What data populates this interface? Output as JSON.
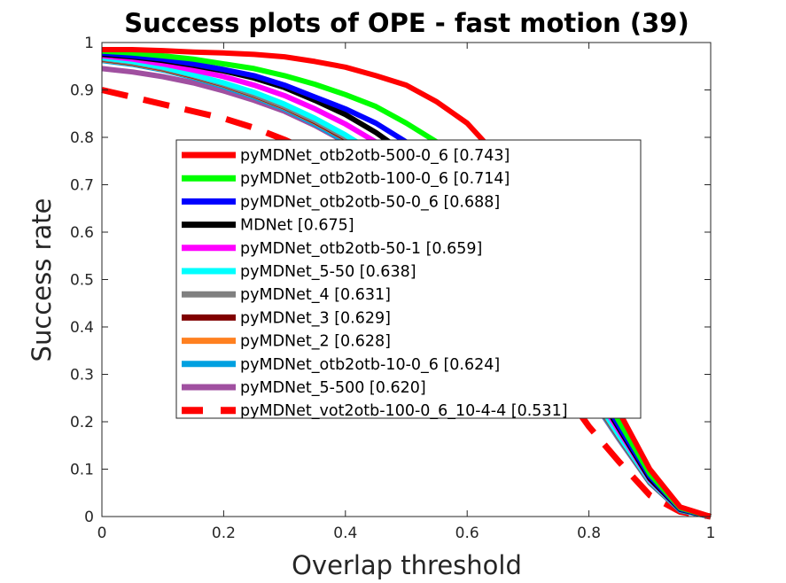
{
  "chart_data": {
    "type": "line",
    "title": "Success plots of OPE - fast motion (39)",
    "xlabel": "Overlap threshold",
    "ylabel": "Success rate",
    "xlim": [
      0,
      1
    ],
    "ylim": [
      0,
      1
    ],
    "xticks": [
      "0",
      "0.2",
      "0.4",
      "0.6",
      "0.8",
      "1"
    ],
    "yticks": [
      "0",
      "0.1",
      "0.2",
      "0.3",
      "0.4",
      "0.5",
      "0.6",
      "0.7",
      "0.8",
      "0.9",
      "1"
    ],
    "grid": false,
    "legend_position": "center-left",
    "x": [
      0,
      0.05,
      0.1,
      0.15,
      0.2,
      0.25,
      0.3,
      0.35,
      0.4,
      0.45,
      0.5,
      0.55,
      0.6,
      0.65,
      0.7,
      0.75,
      0.8,
      0.85,
      0.9,
      0.95,
      1.0
    ],
    "series": [
      {
        "name": "pyMDNet_otb2otb-500-0_6 [0.743]",
        "color": "#ff0000",
        "dash": false,
        "values": [
          0.985,
          0.985,
          0.983,
          0.98,
          0.978,
          0.975,
          0.97,
          0.96,
          0.948,
          0.93,
          0.91,
          0.875,
          0.83,
          0.76,
          0.66,
          0.5,
          0.34,
          0.22,
          0.1,
          0.02,
          0.0
        ]
      },
      {
        "name": "pyMDNet_otb2otb-100-0_6 [0.714]",
        "color": "#00ff00",
        "dash": false,
        "values": [
          0.982,
          0.978,
          0.972,
          0.965,
          0.955,
          0.945,
          0.93,
          0.912,
          0.89,
          0.865,
          0.83,
          0.79,
          0.73,
          0.65,
          0.56,
          0.44,
          0.31,
          0.2,
          0.09,
          0.018,
          0.0
        ]
      },
      {
        "name": "pyMDNet_otb2otb-50-0_6 [0.688]",
        "color": "#0000ff",
        "dash": false,
        "values": [
          0.978,
          0.972,
          0.965,
          0.955,
          0.943,
          0.93,
          0.91,
          0.885,
          0.86,
          0.83,
          0.79,
          0.74,
          0.68,
          0.61,
          0.52,
          0.41,
          0.3,
          0.19,
          0.085,
          0.016,
          0.0
        ]
      },
      {
        "name": "MDNet [0.675]",
        "color": "#000000",
        "dash": false,
        "values": [
          0.975,
          0.97,
          0.962,
          0.952,
          0.94,
          0.925,
          0.905,
          0.878,
          0.848,
          0.81,
          0.765,
          0.71,
          0.65,
          0.58,
          0.5,
          0.4,
          0.29,
          0.185,
          0.08,
          0.015,
          0.0
        ]
      },
      {
        "name": "pyMDNet_otb2otb-50-1 [0.659]",
        "color": "#ff00ff",
        "dash": false,
        "values": [
          0.972,
          0.965,
          0.955,
          0.942,
          0.928,
          0.91,
          0.888,
          0.86,
          0.828,
          0.79,
          0.745,
          0.69,
          0.63,
          0.565,
          0.49,
          0.39,
          0.28,
          0.18,
          0.078,
          0.015,
          0.0
        ]
      },
      {
        "name": "pyMDNet_5-50 [0.638]",
        "color": "#00ffff",
        "dash": false,
        "values": [
          0.968,
          0.96,
          0.948,
          0.932,
          0.915,
          0.895,
          0.87,
          0.84,
          0.805,
          0.765,
          0.72,
          0.665,
          0.605,
          0.54,
          0.47,
          0.375,
          0.27,
          0.17,
          0.075,
          0.014,
          0.0
        ]
      },
      {
        "name": "pyMDNet_4 [0.631]",
        "color": "#808080",
        "dash": false,
        "values": [
          0.966,
          0.958,
          0.946,
          0.93,
          0.912,
          0.89,
          0.865,
          0.835,
          0.8,
          0.76,
          0.715,
          0.66,
          0.6,
          0.535,
          0.465,
          0.37,
          0.265,
          0.168,
          0.074,
          0.014,
          0.0
        ]
      },
      {
        "name": "pyMDNet_3 [0.629]",
        "color": "#800000",
        "dash": false,
        "values": [
          0.965,
          0.957,
          0.945,
          0.929,
          0.911,
          0.889,
          0.864,
          0.833,
          0.798,
          0.758,
          0.713,
          0.658,
          0.598,
          0.533,
          0.463,
          0.368,
          0.264,
          0.167,
          0.073,
          0.014,
          0.0
        ]
      },
      {
        "name": "pyMDNet_2 [0.628]",
        "color": "#ff8020",
        "dash": false,
        "values": [
          0.964,
          0.956,
          0.944,
          0.928,
          0.91,
          0.888,
          0.863,
          0.832,
          0.797,
          0.757,
          0.712,
          0.657,
          0.597,
          0.532,
          0.462,
          0.367,
          0.263,
          0.166,
          0.073,
          0.014,
          0.0
        ]
      },
      {
        "name": "pyMDNet_otb2otb-10-0_6 [0.624]",
        "color": "#00a0e0",
        "dash": false,
        "values": [
          0.962,
          0.954,
          0.942,
          0.926,
          0.907,
          0.885,
          0.86,
          0.828,
          0.792,
          0.752,
          0.706,
          0.652,
          0.592,
          0.528,
          0.458,
          0.363,
          0.26,
          0.164,
          0.072,
          0.013,
          0.0
        ]
      },
      {
        "name": "pyMDNet_5-500 [0.620]",
        "color": "#a050a0",
        "dash": false,
        "values": [
          0.945,
          0.938,
          0.928,
          0.915,
          0.898,
          0.878,
          0.855,
          0.825,
          0.79,
          0.75,
          0.705,
          0.65,
          0.59,
          0.525,
          0.455,
          0.36,
          0.258,
          0.162,
          0.071,
          0.013,
          0.0
        ]
      },
      {
        "name": "pyMDNet_vot2otb-100-0_6_10-4-4 [0.531]",
        "color": "#ff0000",
        "dash": true,
        "values": [
          0.9,
          0.885,
          0.87,
          0.855,
          0.84,
          0.82,
          0.795,
          0.765,
          0.73,
          0.69,
          0.64,
          0.585,
          0.52,
          0.45,
          0.37,
          0.28,
          0.19,
          0.115,
          0.045,
          0.01,
          0.0
        ]
      }
    ]
  }
}
